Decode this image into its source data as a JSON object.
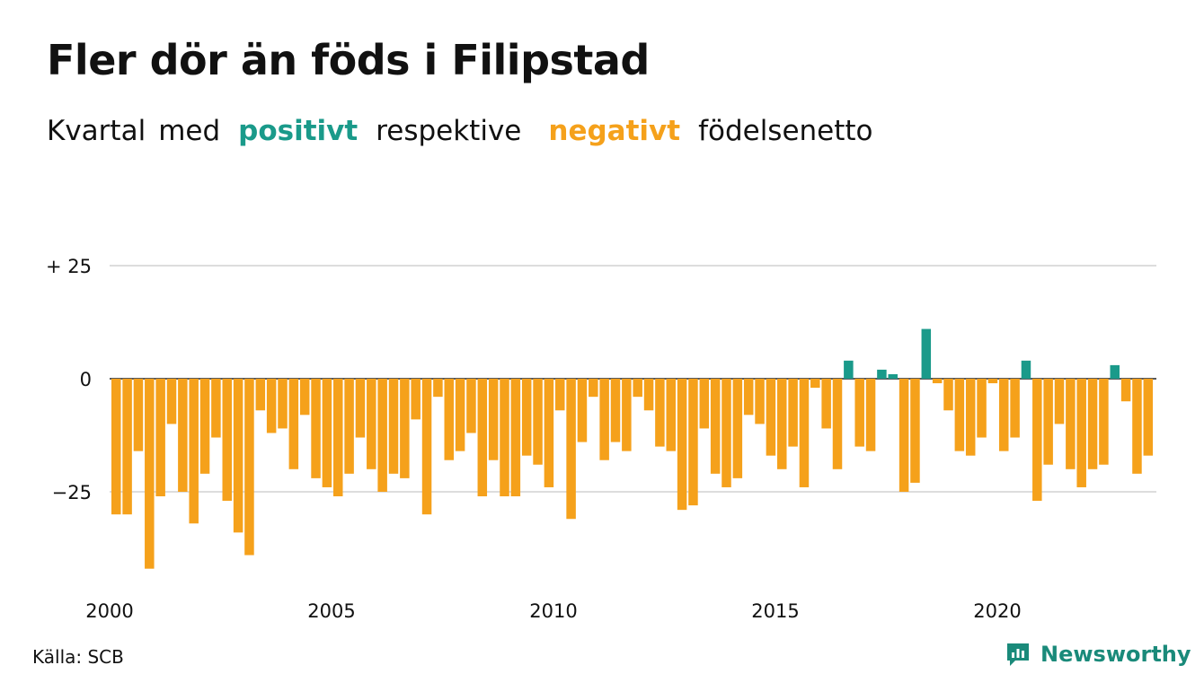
{
  "title": "Fler dör än föds i Filipstad",
  "subtitle": {
    "part1": "Kvartal",
    "part2": "med",
    "positive": "positivt",
    "part3": "respektive",
    "negative": "negativt",
    "part4": "födelsenetto"
  },
  "source": "Källa: SCB",
  "brand": {
    "name": "Newsworthy",
    "icon": "newsworthy-chart-bubble-icon"
  },
  "colors": {
    "positive": "#1a9a8a",
    "negative": "#f5a11b",
    "grid": "#dddddd",
    "text": "#111111"
  },
  "chart_data": {
    "type": "bar",
    "title": "Fler dör än föds i Filipstad",
    "x_ticks": [
      {
        "year": 2000,
        "label": "2000"
      },
      {
        "year": 2005,
        "label": "2005"
      },
      {
        "year": 2010,
        "label": "2010"
      },
      {
        "year": 2015,
        "label": "2015"
      },
      {
        "year": 2020,
        "label": "2020"
      }
    ],
    "y_ticks": [
      {
        "value": 25,
        "label": "+ 25"
      },
      {
        "value": 0,
        "label": "0"
      },
      {
        "value": -25,
        "label": "−25"
      }
    ],
    "ylim": [
      -45,
      25
    ],
    "grid": true,
    "start": {
      "year": 2000,
      "quarter": 1
    },
    "values": [
      -30,
      -30,
      -16,
      -42,
      -26,
      -10,
      -25,
      -32,
      -21,
      -13,
      -27,
      -34,
      -39,
      -7,
      -12,
      -11,
      -20,
      -8,
      -22,
      -24,
      -26,
      -21,
      -13,
      -20,
      -25,
      -21,
      -22,
      -9,
      -30,
      -4,
      -18,
      -16,
      -12,
      -26,
      -18,
      -26,
      -26,
      -17,
      -19,
      -24,
      -7,
      -31,
      -14,
      -4,
      -18,
      -14,
      -16,
      -4,
      -7,
      -15,
      -16,
      -29,
      -28,
      -11,
      -21,
      -24,
      -22,
      -8,
      -10,
      -17,
      -20,
      -15,
      -24,
      -2,
      -11,
      -20,
      4,
      -15,
      -16,
      2,
      1,
      -25,
      -23,
      11,
      -1,
      -7,
      -16,
      -17,
      -13,
      -1,
      -16,
      -13,
      4,
      -27,
      -19,
      -10,
      -20,
      -24,
      -20,
      -19,
      3,
      -5,
      -21,
      -17
    ]
  }
}
